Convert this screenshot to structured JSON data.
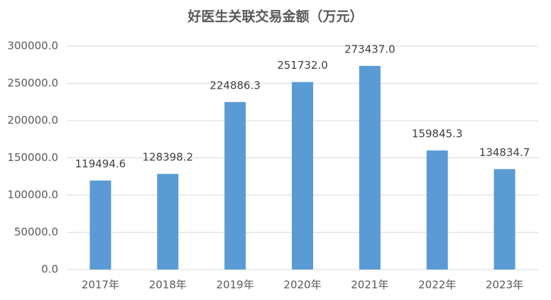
{
  "chart_data": {
    "type": "bar",
    "title": "好医生关联交易金额（万元）",
    "categories": [
      "2017年",
      "2018年",
      "2019年",
      "2020年",
      "2021年",
      "2022年",
      "2023年"
    ],
    "values": [
      119494.6,
      128398.2,
      224886.3,
      251732.0,
      273437.0,
      159845.3,
      134834.7
    ],
    "value_labels": [
      "119494.6",
      "128398.2",
      "224886.3",
      "251732.0",
      "273437.0",
      "159845.3",
      "134834.7"
    ],
    "color": "#5b9bd5",
    "ylim": [
      0,
      300000
    ],
    "yticks": [
      {
        "value": 0,
        "label": "0.0"
      },
      {
        "value": 50000,
        "label": "50000.0"
      },
      {
        "value": 100000,
        "label": "100000.0"
      },
      {
        "value": 150000,
        "label": "150000.0"
      },
      {
        "value": 200000,
        "label": "200000.0"
      },
      {
        "value": 250000,
        "label": "250000.0"
      },
      {
        "value": 300000,
        "label": "300000.0"
      }
    ],
    "grid": true
  }
}
